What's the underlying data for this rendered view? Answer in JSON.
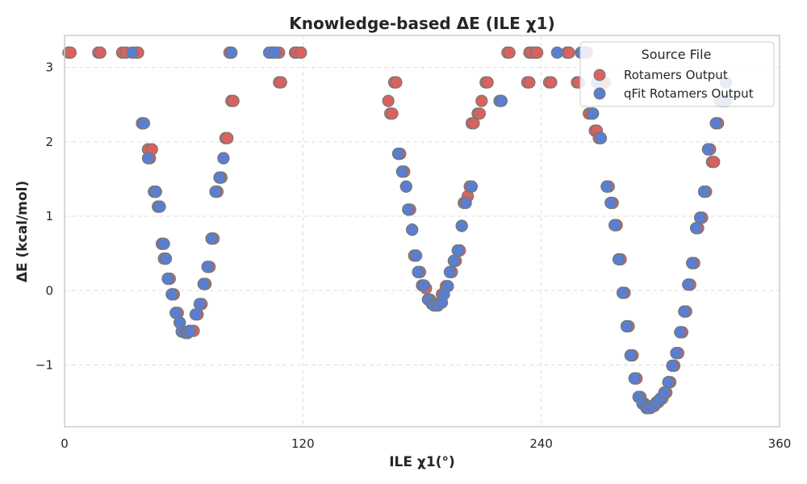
{
  "chart_data": {
    "type": "scatter",
    "title": "Knowledge-based ΔE (ILE χ1)",
    "xlabel": "ILE χ1(°)",
    "ylabel": "ΔE (kcal/mol)",
    "xlim": [
      0,
      360
    ],
    "ylim": [
      -1.83,
      3.43
    ],
    "xticks": [
      0,
      120,
      240,
      360
    ],
    "yticks": [
      -1,
      0,
      1,
      2,
      3
    ],
    "xtick_labels": [
      "0",
      "120",
      "240",
      "360"
    ],
    "ytick_labels": [
      "−1",
      "0",
      "1",
      "2",
      "3"
    ],
    "grid": true,
    "legend": {
      "title": "Source File",
      "location": "top-right"
    },
    "series": [
      {
        "name": "Rotamers Output",
        "color": "#d9625f",
        "points": [
          [
            2,
            3.2
          ],
          [
            3,
            3.2
          ],
          [
            17,
            3.2
          ],
          [
            18,
            3.2
          ],
          [
            29,
            3.2
          ],
          [
            31,
            3.2
          ],
          [
            36,
            3.2
          ],
          [
            37,
            3.2
          ],
          [
            39,
            2.25
          ],
          [
            42,
            1.9
          ],
          [
            43,
            1.78
          ],
          [
            44,
            1.9
          ],
          [
            45,
            1.33
          ],
          [
            46,
            1.33
          ],
          [
            47,
            1.13
          ],
          [
            49,
            0.63
          ],
          [
            50,
            0.43
          ],
          [
            51,
            0.43
          ],
          [
            52,
            0.16
          ],
          [
            53,
            0.16
          ],
          [
            54,
            -0.05
          ],
          [
            55,
            -0.05
          ],
          [
            56,
            -0.3
          ],
          [
            57,
            -0.3
          ],
          [
            58,
            -0.43
          ],
          [
            59,
            -0.55
          ],
          [
            60,
            -0.55
          ],
          [
            62,
            -0.57
          ],
          [
            65,
            -0.54
          ],
          [
            67,
            -0.32
          ],
          [
            69,
            -0.18
          ],
          [
            70,
            0.09
          ],
          [
            71,
            0.09
          ],
          [
            72,
            0.32
          ],
          [
            73,
            0.32
          ],
          [
            74,
            0.7
          ],
          [
            75,
            0.7
          ],
          [
            76,
            1.33
          ],
          [
            77,
            1.33
          ],
          [
            78,
            1.52
          ],
          [
            79,
            1.52
          ],
          [
            80,
            1.78
          ],
          [
            81,
            2.05
          ],
          [
            82,
            2.05
          ],
          [
            84,
            2.55
          ],
          [
            85,
            2.55
          ],
          [
            83,
            3.2
          ],
          [
            84,
            3.2
          ],
          [
            104,
            3.2
          ],
          [
            105,
            3.2
          ],
          [
            108,
            3.2
          ],
          [
            108,
            2.8
          ],
          [
            109,
            2.8
          ],
          [
            116,
            3.2
          ],
          [
            117,
            3.2
          ],
          [
            119,
            3.2
          ],
          [
            163,
            2.55
          ],
          [
            164,
            2.38
          ],
          [
            165,
            2.38
          ],
          [
            166,
            2.8
          ],
          [
            167,
            2.8
          ],
          [
            168,
            1.84
          ],
          [
            169,
            1.84
          ],
          [
            170,
            1.6
          ],
          [
            171,
            1.6
          ],
          [
            172,
            1.4
          ],
          [
            173,
            1.09
          ],
          [
            174,
            1.09
          ],
          [
            175,
            0.82
          ],
          [
            176,
            0.47
          ],
          [
            177,
            0.47
          ],
          [
            178,
            0.25
          ],
          [
            179,
            0.25
          ],
          [
            180,
            0.07
          ],
          [
            182,
            0.03
          ],
          [
            183,
            -0.12
          ],
          [
            184,
            -0.12
          ],
          [
            185,
            -0.18
          ],
          [
            187,
            -0.2
          ],
          [
            189,
            -0.16
          ],
          [
            190,
            -0.05
          ],
          [
            192,
            0.06
          ],
          [
            194,
            0.25
          ],
          [
            195,
            0.25
          ],
          [
            196,
            0.4
          ],
          [
            197,
            0.4
          ],
          [
            198,
            0.54
          ],
          [
            199,
            0.54
          ],
          [
            200,
            0.87
          ],
          [
            201,
            1.18
          ],
          [
            202,
            1.18
          ],
          [
            203,
            1.27
          ],
          [
            204,
            1.4
          ],
          [
            205,
            2.25
          ],
          [
            206,
            2.25
          ],
          [
            208,
            2.38
          ],
          [
            209,
            2.38
          ],
          [
            210,
            2.55
          ],
          [
            212,
            2.8
          ],
          [
            213,
            2.8
          ],
          [
            223,
            3.2
          ],
          [
            224,
            3.2
          ],
          [
            234,
            3.2
          ],
          [
            235,
            3.2
          ],
          [
            237,
            3.2
          ],
          [
            238,
            3.2
          ],
          [
            233,
            2.8
          ],
          [
            234,
            2.8
          ],
          [
            244,
            2.8
          ],
          [
            245,
            2.8
          ],
          [
            253,
            3.2
          ],
          [
            254,
            3.2
          ],
          [
            258,
            2.8
          ],
          [
            259,
            2.8
          ],
          [
            262,
            3.2
          ],
          [
            263,
            3.2
          ],
          [
            264,
            2.38
          ],
          [
            265,
            2.38
          ],
          [
            266,
            2.38
          ],
          [
            267,
            2.15
          ],
          [
            268,
            2.15
          ],
          [
            269,
            2.05
          ],
          [
            270,
            2.05
          ],
          [
            271,
            2.8
          ],
          [
            272,
            2.8
          ],
          [
            273,
            1.4
          ],
          [
            274,
            1.4
          ],
          [
            275,
            1.18
          ],
          [
            276,
            1.18
          ],
          [
            277,
            0.88
          ],
          [
            278,
            0.88
          ],
          [
            279,
            0.42
          ],
          [
            280,
            0.42
          ],
          [
            281,
            -0.03
          ],
          [
            282,
            -0.03
          ],
          [
            283,
            -0.48
          ],
          [
            284,
            -0.48
          ],
          [
            285,
            -0.87
          ],
          [
            286,
            -0.87
          ],
          [
            287,
            -1.18
          ],
          [
            288,
            -1.18
          ],
          [
            289,
            -1.43
          ],
          [
            290,
            -1.43
          ],
          [
            291,
            -1.52
          ],
          [
            292,
            -1.52
          ],
          [
            293,
            -1.58
          ],
          [
            295,
            -1.58
          ],
          [
            297,
            -1.55
          ],
          [
            299,
            -1.5
          ],
          [
            301,
            -1.45
          ],
          [
            302,
            -1.37
          ],
          [
            303,
            -1.37
          ],
          [
            304,
            -1.23
          ],
          [
            305,
            -1.23
          ],
          [
            306,
            -1.01
          ],
          [
            307,
            -1.01
          ],
          [
            308,
            -0.84
          ],
          [
            309,
            -0.84
          ],
          [
            310,
            -0.56
          ],
          [
            311,
            -0.56
          ],
          [
            312,
            -0.28
          ],
          [
            313,
            -0.28
          ],
          [
            314,
            0.08
          ],
          [
            315,
            0.08
          ],
          [
            316,
            0.37
          ],
          [
            317,
            0.37
          ],
          [
            318,
            0.84
          ],
          [
            319,
            0.84
          ],
          [
            320,
            0.98
          ],
          [
            321,
            0.98
          ],
          [
            322,
            1.33
          ],
          [
            323,
            1.33
          ],
          [
            324,
            1.9
          ],
          [
            325,
            1.9
          ],
          [
            326,
            1.73
          ],
          [
            327,
            1.73
          ],
          [
            328,
            2.25
          ],
          [
            329,
            2.25
          ],
          [
            330,
            2.55
          ],
          [
            332,
            2.55
          ]
        ]
      },
      {
        "name": "qFit Rotamers Output",
        "color": "#5a7fd1",
        "points": [
          [
            34,
            3.2
          ],
          [
            39,
            2.25
          ],
          [
            40,
            2.25
          ],
          [
            42,
            1.78
          ],
          [
            45,
            1.33
          ],
          [
            46,
            1.33
          ],
          [
            47,
            1.13
          ],
          [
            48,
            1.13
          ],
          [
            49,
            0.63
          ],
          [
            50,
            0.63
          ],
          [
            51,
            0.43
          ],
          [
            52,
            0.16
          ],
          [
            54,
            -0.05
          ],
          [
            56,
            -0.3
          ],
          [
            58,
            -0.43
          ],
          [
            59,
            -0.55
          ],
          [
            61,
            -0.57
          ],
          [
            62,
            -0.57
          ],
          [
            63,
            -0.54
          ],
          [
            66,
            -0.32
          ],
          [
            68,
            -0.18
          ],
          [
            70,
            0.09
          ],
          [
            72,
            0.32
          ],
          [
            74,
            0.7
          ],
          [
            76,
            1.33
          ],
          [
            78,
            1.52
          ],
          [
            80,
            1.78
          ],
          [
            84,
            3.2
          ],
          [
            103,
            3.2
          ],
          [
            106,
            3.2
          ],
          [
            168,
            1.84
          ],
          [
            170,
            1.6
          ],
          [
            172,
            1.4
          ],
          [
            173,
            1.09
          ],
          [
            175,
            0.82
          ],
          [
            177,
            0.47
          ],
          [
            178,
            0.25
          ],
          [
            180,
            0.07
          ],
          [
            181,
            0.07
          ],
          [
            183,
            -0.12
          ],
          [
            185,
            -0.18
          ],
          [
            186,
            -0.2
          ],
          [
            188,
            -0.2
          ],
          [
            190,
            -0.16
          ],
          [
            191,
            -0.05
          ],
          [
            193,
            0.06
          ],
          [
            194,
            0.25
          ],
          [
            196,
            0.4
          ],
          [
            198,
            0.54
          ],
          [
            200,
            0.87
          ],
          [
            202,
            1.18
          ],
          [
            205,
            1.4
          ],
          [
            219,
            2.55
          ],
          [
            220,
            2.55
          ],
          [
            248,
            3.2
          ],
          [
            260,
            3.2
          ],
          [
            261,
            3.2
          ],
          [
            266,
            2.38
          ],
          [
            268,
            2.8
          ],
          [
            270,
            2.05
          ],
          [
            273,
            1.4
          ],
          [
            275,
            1.18
          ],
          [
            277,
            0.88
          ],
          [
            279,
            0.42
          ],
          [
            281,
            -0.03
          ],
          [
            283,
            -0.48
          ],
          [
            285,
            -0.87
          ],
          [
            287,
            -1.18
          ],
          [
            289,
            -1.43
          ],
          [
            291,
            -1.52
          ],
          [
            293,
            -1.58
          ],
          [
            294,
            -1.58
          ],
          [
            296,
            -1.55
          ],
          [
            298,
            -1.5
          ],
          [
            300,
            -1.45
          ],
          [
            302,
            -1.37
          ],
          [
            304,
            -1.23
          ],
          [
            306,
            -1.01
          ],
          [
            308,
            -0.84
          ],
          [
            310,
            -0.56
          ],
          [
            312,
            -0.28
          ],
          [
            314,
            0.08
          ],
          [
            316,
            0.37
          ],
          [
            318,
            0.84
          ],
          [
            320,
            0.98
          ],
          [
            322,
            1.33
          ],
          [
            324,
            1.9
          ],
          [
            328,
            2.25
          ],
          [
            331,
            2.55
          ],
          [
            333,
            2.55
          ],
          [
            333,
            2.8
          ]
        ]
      }
    ]
  }
}
